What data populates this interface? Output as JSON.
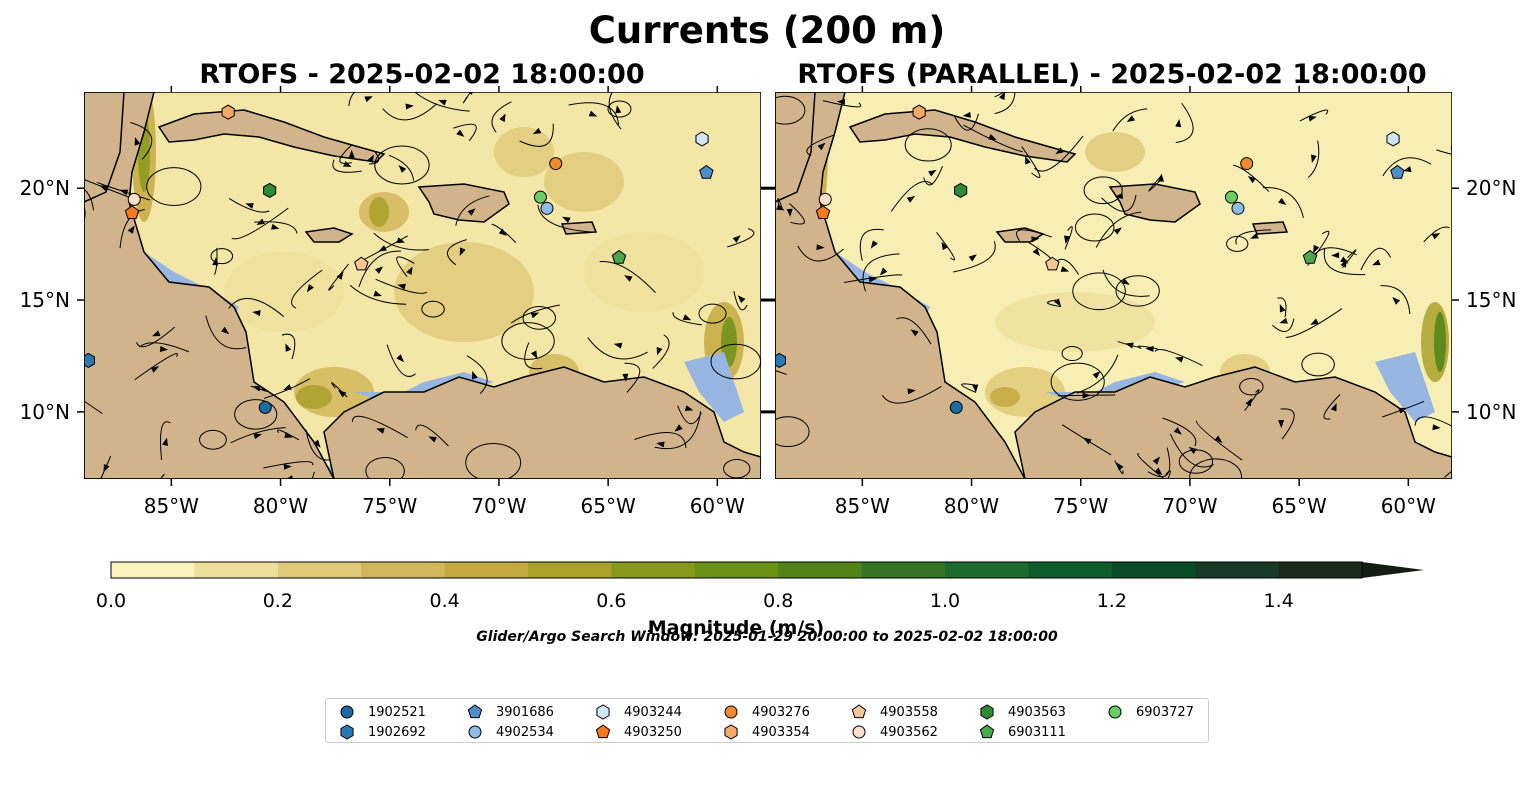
{
  "figure": {
    "title": "Currents (200 m)",
    "left_title": "RTOFS - 2025-02-02 18:00:00",
    "right_title": "RTOFS (PARALLEL) - 2025-02-02 18:00:00",
    "colorbar_label": "Magnitude (m/s)",
    "colorbar_ticks": [
      "0.0",
      "0.2",
      "0.4",
      "0.6",
      "0.8",
      "1.0",
      "1.2",
      "1.4"
    ],
    "search_window": "Glider/Argo Search Window: 2025-01-29 20:00:00 to 2025-02-02 18:00:00"
  },
  "axes": {
    "lon_labels": [
      "85°W",
      "80°W",
      "75°W",
      "70°W",
      "65°W",
      "60°W"
    ],
    "lat_labels": [
      "20°N",
      "15°N",
      "10°N"
    ]
  },
  "colors": {
    "land": "#d2b48c",
    "ocean_shallow": "#97b6e1",
    "colormap": [
      "#fbf3bd",
      "#efdf9c",
      "#e1c97a",
      "#d2b65a",
      "#c4a93f",
      "#a9a12a",
      "#87991a",
      "#6b9117",
      "#508318",
      "#357325",
      "#1d6b2d",
      "#0d5c2a",
      "#0a4a26",
      "#173b26",
      "#1c2a1c",
      "#141d12"
    ]
  },
  "legend": {
    "items": [
      {
        "id": "1902521",
        "shape": "circle",
        "color": "#1f6aa5"
      },
      {
        "id": "1902692",
        "shape": "hexagon",
        "color": "#2b78b5"
      },
      {
        "id": "3901686",
        "shape": "pentagon",
        "color": "#4d8fcc"
      },
      {
        "id": "4902534",
        "shape": "circle",
        "color": "#8dbde6"
      },
      {
        "id": "4903244",
        "shape": "hexagon",
        "color": "#cfe6f6"
      },
      {
        "id": "4903250",
        "shape": "pentagon",
        "color": "#f47a1f"
      },
      {
        "id": "4903276",
        "shape": "circle",
        "color": "#f08a2e"
      },
      {
        "id": "4903354",
        "shape": "hexagon",
        "color": "#f7a96a"
      },
      {
        "id": "4903558",
        "shape": "pentagon",
        "color": "#f9c595"
      },
      {
        "id": "4903562",
        "shape": "circle",
        "color": "#fde0cc"
      },
      {
        "id": "4903563",
        "shape": "hexagon",
        "color": "#2f8b2f"
      },
      {
        "id": "6903111",
        "shape": "pentagon",
        "color": "#4aa84a"
      },
      {
        "id": "6903727",
        "shape": "circle",
        "color": "#6dcc63"
      }
    ]
  },
  "markers_left": [
    {
      "id": "1902521",
      "lon": -80.7,
      "lat": 10.2
    },
    {
      "id": "1902692",
      "lon": -88.8,
      "lat": 12.3
    },
    {
      "id": "3901686",
      "lon": -60.5,
      "lat": 20.7
    },
    {
      "id": "4902534",
      "lon": -67.8,
      "lat": 19.1
    },
    {
      "id": "4903244",
      "lon": -60.7,
      "lat": 22.2
    },
    {
      "id": "4903250",
      "lon": -86.8,
      "lat": 18.9
    },
    {
      "id": "4903276",
      "lon": -67.4,
      "lat": 21.1
    },
    {
      "id": "4903354",
      "lon": -82.4,
      "lat": 23.4
    },
    {
      "id": "4903558",
      "lon": -76.3,
      "lat": 16.6
    },
    {
      "id": "4903562",
      "lon": -86.7,
      "lat": 19.5
    },
    {
      "id": "4903563",
      "lon": -80.5,
      "lat": 19.9
    },
    {
      "id": "6903111",
      "lon": -64.5,
      "lat": 16.9
    },
    {
      "id": "6903727",
      "lon": -68.1,
      "lat": 19.6
    }
  ],
  "markers_right": [
    {
      "id": "1902521",
      "lon": -80.7,
      "lat": 10.2
    },
    {
      "id": "1902692",
      "lon": -88.8,
      "lat": 12.3
    },
    {
      "id": "3901686",
      "lon": -60.5,
      "lat": 20.7
    },
    {
      "id": "4902534",
      "lon": -67.8,
      "lat": 19.1
    },
    {
      "id": "4903244",
      "lon": -60.7,
      "lat": 22.2
    },
    {
      "id": "4903250",
      "lon": -86.8,
      "lat": 18.9
    },
    {
      "id": "4903276",
      "lon": -67.4,
      "lat": 21.1
    },
    {
      "id": "4903354",
      "lon": -82.4,
      "lat": 23.4
    },
    {
      "id": "4903558",
      "lon": -76.3,
      "lat": 16.6
    },
    {
      "id": "4903562",
      "lon": -86.7,
      "lat": 19.5
    },
    {
      "id": "4903563",
      "lon": -80.5,
      "lat": 19.9
    },
    {
      "id": "6903111",
      "lon": -64.5,
      "lat": 16.9
    },
    {
      "id": "6903727",
      "lon": -68.1,
      "lat": 19.6
    }
  ]
}
